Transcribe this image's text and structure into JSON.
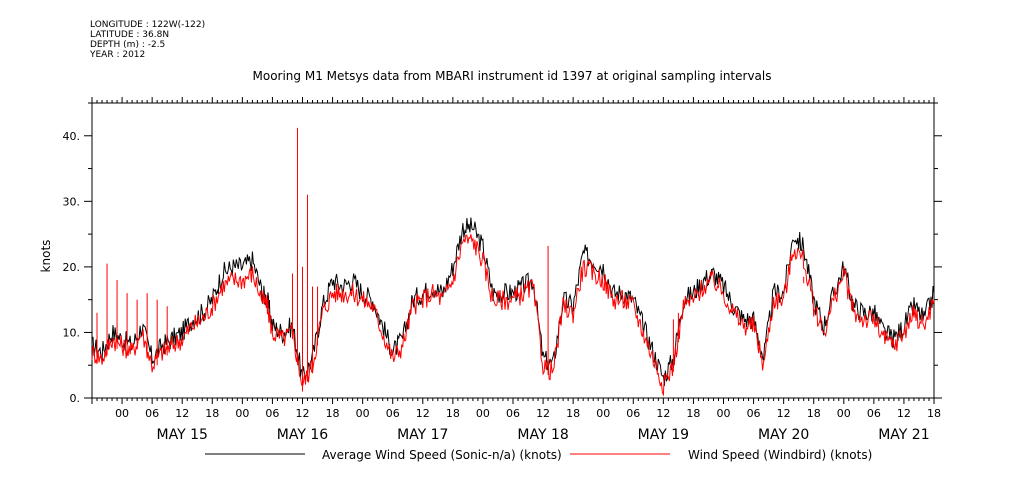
{
  "header": {
    "lines": [
      "LONGITUDE : 122W(-122)",
      "LATITUDE : 36.8N",
      "DEPTH (m) : -2.5",
      "YEAR : 2012"
    ]
  },
  "chart_data": {
    "type": "line",
    "title": "Mooring M1 Metsys data from MBARI instrument id 1397 at original sampling intervals",
    "ylabel": "knots",
    "xlabel": "",
    "ylim": [
      0,
      45
    ],
    "yticks": [
      0,
      10,
      20,
      30,
      40
    ],
    "ytick_labels": [
      "0.",
      "10.",
      "20.",
      "30.",
      "40."
    ],
    "xlim_hours": [
      -6,
      162
    ],
    "hour_ticks": [
      0,
      6,
      12,
      18,
      24,
      30,
      36,
      42,
      48,
      54,
      60,
      66,
      72,
      78,
      84,
      90,
      96,
      102,
      108,
      114,
      120,
      126,
      132,
      138,
      144,
      150,
      156,
      162
    ],
    "hour_tick_labels": [
      "00",
      "06",
      "12",
      "18",
      "00",
      "06",
      "12",
      "18",
      "00",
      "06",
      "12",
      "18",
      "00",
      "06",
      "12",
      "18",
      "00",
      "06",
      "12",
      "18",
      "00",
      "06",
      "12",
      "18",
      "00",
      "06",
      "12",
      "18"
    ],
    "day_labels": [
      {
        "label": "MAY 15",
        "hour": 12
      },
      {
        "label": "MAY 16",
        "hour": 36
      },
      {
        "label": "MAY 17",
        "hour": 60
      },
      {
        "label": "MAY 18",
        "hour": 84
      },
      {
        "label": "MAY 19",
        "hour": 108
      },
      {
        "label": "MAY 20",
        "hour": 132
      },
      {
        "label": "MAY 21",
        "hour": 156
      }
    ],
    "grid": false,
    "legend_position": "bottom",
    "series": [
      {
        "name": "Average Wind Speed (Sonic-n/a) (knots)",
        "color": "#000000",
        "x": [
          -6,
          -4,
          -2,
          0,
          2,
          4,
          6,
          8,
          10,
          12,
          14,
          16,
          18,
          20,
          22,
          24,
          26,
          28,
          29,
          30,
          32,
          34,
          36,
          38,
          40,
          42,
          44,
          46,
          48,
          50,
          52,
          54,
          56,
          58,
          60,
          62,
          64,
          66,
          68,
          70,
          72,
          74,
          76,
          78,
          80,
          82,
          84,
          86,
          88,
          90,
          92,
          94,
          96,
          98,
          100,
          102,
          104,
          106,
          108,
          110,
          112,
          114,
          116,
          118,
          120,
          122,
          124,
          126,
          128,
          130,
          132,
          134,
          136,
          138,
          140,
          142,
          144,
          146,
          148,
          150,
          152,
          154,
          156,
          158,
          160,
          162
        ],
        "y": [
          8,
          7,
          10,
          9,
          8,
          11,
          6,
          8,
          9,
          10,
          12,
          13,
          15,
          19,
          20,
          20,
          21,
          16,
          15,
          11,
          10,
          11,
          3,
          6,
          14,
          18,
          17,
          18,
          16,
          15,
          11,
          7,
          9,
          15,
          16,
          17,
          16,
          20,
          26,
          26,
          23,
          16,
          16,
          16,
          17,
          18,
          6,
          5,
          15,
          14,
          22,
          21,
          20,
          16,
          16,
          15,
          11,
          7,
          3,
          6,
          15,
          16,
          18,
          19,
          17,
          14,
          12,
          12,
          6,
          16,
          16,
          25,
          23,
          15,
          11,
          16,
          20,
          14,
          13,
          13,
          10,
          9,
          11,
          14,
          12,
          16
        ]
      },
      {
        "name": "Wind Speed (Windbird) (knots)",
        "color": "#ff0000",
        "x": [
          -6,
          -4,
          -2,
          0,
          2,
          4,
          6,
          8,
          10,
          12,
          14,
          16,
          18,
          20,
          22,
          24,
          26,
          28,
          29,
          30,
          32,
          34,
          36,
          38,
          40,
          42,
          44,
          46,
          48,
          50,
          52,
          54,
          56,
          58,
          60,
          62,
          64,
          66,
          68,
          70,
          72,
          74,
          76,
          78,
          80,
          82,
          84,
          86,
          88,
          90,
          92,
          94,
          96,
          98,
          100,
          102,
          104,
          106,
          108,
          110,
          112,
          114,
          116,
          118,
          120,
          122,
          124,
          126,
          128,
          130,
          132,
          134,
          136,
          138,
          140,
          142,
          144,
          146,
          148,
          150,
          152,
          154,
          156,
          158,
          160,
          162
        ],
        "y": [
          7,
          6,
          9,
          8,
          7,
          10,
          5,
          7,
          8,
          9,
          11,
          12,
          14,
          17,
          18,
          18,
          19,
          15,
          14,
          10,
          9,
          10,
          2,
          5,
          13,
          16,
          16,
          16,
          15,
          14,
          10,
          6,
          8,
          14,
          15,
          16,
          15,
          18,
          24,
          24,
          21,
          15,
          15,
          15,
          16,
          17,
          5,
          4,
          14,
          13,
          20,
          19,
          18,
          15,
          15,
          14,
          10,
          6,
          2,
          5,
          14,
          15,
          17,
          18,
          16,
          13,
          11,
          11,
          5,
          15,
          15,
          23,
          21,
          14,
          10,
          15,
          19,
          13,
          12,
          12,
          9,
          8,
          10,
          13,
          11,
          15
        ]
      }
    ],
    "spikes": [
      {
        "hour": -5,
        "value": 13
      },
      {
        "hour": -3,
        "value": 20.5
      },
      {
        "hour": -1,
        "value": 18
      },
      {
        "hour": 1,
        "value": 16
      },
      {
        "hour": 3,
        "value": 15
      },
      {
        "hour": 5,
        "value": 16
      },
      {
        "hour": 7,
        "value": 15
      },
      {
        "hour": 9,
        "value": 14
      },
      {
        "hour": 34,
        "value": 19
      },
      {
        "hour": 35,
        "value": 41.2
      },
      {
        "hour": 36,
        "value": 20
      },
      {
        "hour": 37,
        "value": 31
      },
      {
        "hour": 38,
        "value": 17
      },
      {
        "hour": 39,
        "value": 17
      },
      {
        "hour": 85,
        "value": 23.2
      },
      {
        "hour": 110,
        "value": 12
      },
      {
        "hour": 111,
        "value": 13
      },
      {
        "hour": 136,
        "value": 18.5
      }
    ]
  }
}
